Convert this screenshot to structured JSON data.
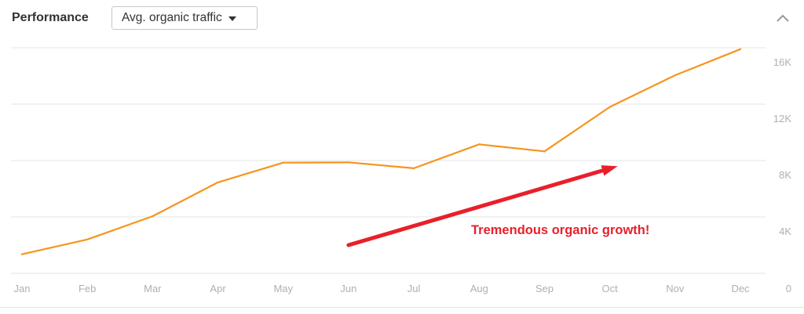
{
  "header": {
    "title": "Performance",
    "dropdown": {
      "selected": "Avg. organic traffic",
      "icon": "caret-down-icon"
    },
    "collapse_icon": "chevron-up-icon"
  },
  "colors": {
    "line": "#f7941d",
    "grid": "#e6e6e6",
    "tick_text": "#b0b0b0",
    "annotation": "#e8202a"
  },
  "chart_data": {
    "type": "line",
    "categories": [
      "Jan",
      "Feb",
      "Mar",
      "Apr",
      "May",
      "Jun",
      "Jul",
      "Aug",
      "Sep",
      "Oct",
      "Nov",
      "Dec"
    ],
    "series": [
      {
        "values": [
          1350,
          2400,
          4050,
          6450,
          7850,
          7870,
          7450,
          9150,
          8650,
          11800,
          14050,
          15900
        ]
      }
    ],
    "y_ticks": [
      {
        "value": 0,
        "label": "0"
      },
      {
        "value": 4000,
        "label": "4K"
      },
      {
        "value": 8000,
        "label": "8K"
      },
      {
        "value": 12000,
        "label": "12K"
      },
      {
        "value": 16000,
        "label": "16K"
      }
    ],
    "ylim": [
      0,
      16000
    ],
    "y_axis_side": "right",
    "grid": true,
    "annotation": {
      "text": "Tremendous organic growth!",
      "arrow": {
        "from": {
          "x": "Jun",
          "y": 2000
        },
        "to": {
          "x": "Oct",
          "y": 7600
        }
      }
    }
  }
}
